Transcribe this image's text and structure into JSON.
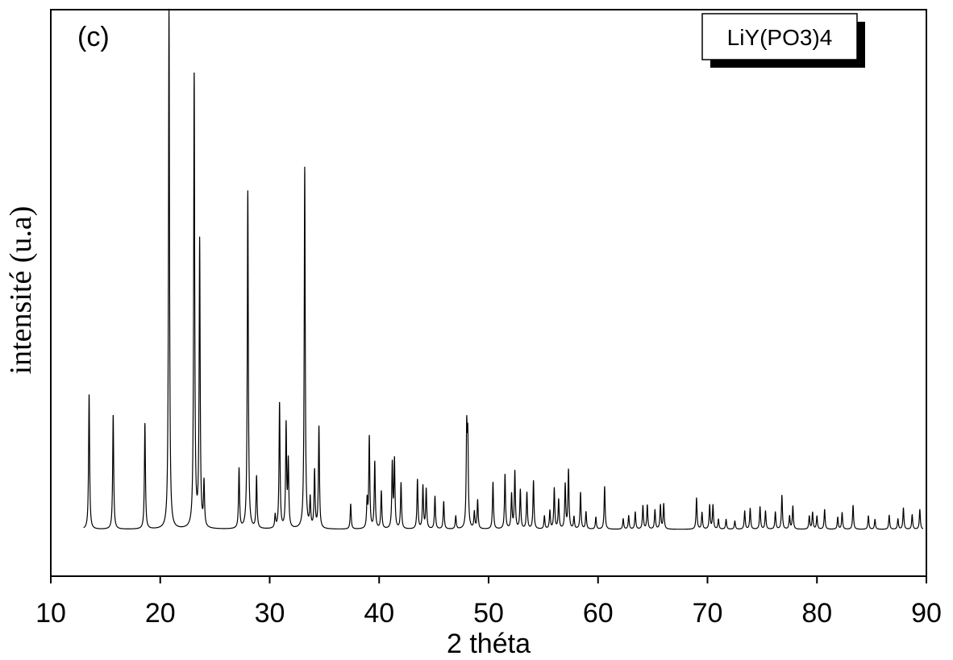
{
  "chart_data": {
    "type": "line",
    "panel_label": "(c)",
    "legend_label": "LiY(PO3)4",
    "xlabel": "2 théta",
    "ylabel": "intensité (u.a)",
    "xlim": [
      10,
      90
    ],
    "xticks": [
      10,
      20,
      30,
      40,
      50,
      60,
      70,
      80,
      90
    ],
    "ylim": [
      -9,
      100
    ],
    "baseline": 0,
    "peak_width": 0.055,
    "grid": false,
    "y_tick_labels": false,
    "colors": {
      "line": "#000000",
      "axes": "#000000",
      "legend_shadow": "#000000"
    },
    "peaks": [
      [
        13.5,
        26.0
      ],
      [
        15.7,
        22.0
      ],
      [
        18.6,
        20.3
      ],
      [
        20.8,
        100.0
      ],
      [
        23.1,
        87.5
      ],
      [
        23.6,
        55.0
      ],
      [
        24.0,
        8.5
      ],
      [
        27.2,
        11.5
      ],
      [
        28.0,
        65.0
      ],
      [
        28.8,
        10.0
      ],
      [
        30.5,
        2.5
      ],
      [
        30.9,
        24.2
      ],
      [
        31.5,
        19.8
      ],
      [
        31.7,
        12.5
      ],
      [
        33.2,
        69.5
      ],
      [
        33.7,
        5.5
      ],
      [
        34.1,
        11.0
      ],
      [
        34.5,
        19.6
      ],
      [
        37.4,
        4.8
      ],
      [
        38.9,
        5.2
      ],
      [
        39.1,
        17.6
      ],
      [
        39.6,
        12.8
      ],
      [
        40.2,
        7.2
      ],
      [
        41.2,
        12.3
      ],
      [
        41.4,
        13.0
      ],
      [
        42.0,
        8.8
      ],
      [
        43.5,
        9.5
      ],
      [
        44.0,
        8.2
      ],
      [
        44.3,
        7.6
      ],
      [
        45.1,
        6.3
      ],
      [
        45.9,
        5.3
      ],
      [
        47.0,
        2.5
      ],
      [
        48.0,
        18.0
      ],
      [
        48.1,
        16.0
      ],
      [
        48.7,
        3.2
      ],
      [
        49.0,
        5.5
      ],
      [
        50.4,
        9.0
      ],
      [
        51.5,
        10.5
      ],
      [
        52.1,
        6.6
      ],
      [
        52.4,
        11.0
      ],
      [
        52.9,
        7.5
      ],
      [
        53.5,
        7.0
      ],
      [
        54.1,
        9.3
      ],
      [
        55.1,
        2.5
      ],
      [
        55.6,
        3.5
      ],
      [
        56.0,
        7.8
      ],
      [
        56.4,
        5.6
      ],
      [
        57.0,
        8.5
      ],
      [
        57.3,
        11.3
      ],
      [
        57.8,
        2.3
      ],
      [
        58.4,
        7.0
      ],
      [
        58.9,
        3.3
      ],
      [
        59.8,
        2.3
      ],
      [
        60.6,
        8.2
      ],
      [
        62.3,
        2.0
      ],
      [
        62.8,
        2.6
      ],
      [
        63.4,
        3.3
      ],
      [
        64.1,
        4.5
      ],
      [
        64.5,
        4.6
      ],
      [
        65.2,
        3.7
      ],
      [
        65.7,
        4.6
      ],
      [
        66.0,
        4.8
      ],
      [
        69.0,
        6.0
      ],
      [
        69.5,
        3.2
      ],
      [
        70.2,
        4.6
      ],
      [
        70.5,
        4.6
      ],
      [
        71.0,
        1.9
      ],
      [
        71.7,
        1.9
      ],
      [
        72.5,
        1.6
      ],
      [
        73.4,
        3.5
      ],
      [
        73.9,
        4.0
      ],
      [
        74.8,
        4.3
      ],
      [
        75.3,
        3.5
      ],
      [
        76.2,
        3.3
      ],
      [
        76.8,
        6.5
      ],
      [
        77.5,
        2.5
      ],
      [
        77.8,
        4.4
      ],
      [
        79.3,
        2.5
      ],
      [
        79.6,
        3.2
      ],
      [
        80.0,
        2.5
      ],
      [
        80.7,
        3.8
      ],
      [
        81.9,
        2.3
      ],
      [
        82.3,
        3.2
      ],
      [
        83.3,
        4.6
      ],
      [
        84.7,
        2.6
      ],
      [
        85.3,
        1.9
      ],
      [
        86.6,
        2.7
      ],
      [
        87.4,
        2.0
      ],
      [
        87.9,
        4.1
      ],
      [
        88.7,
        2.8
      ],
      [
        89.4,
        3.8
      ]
    ]
  }
}
